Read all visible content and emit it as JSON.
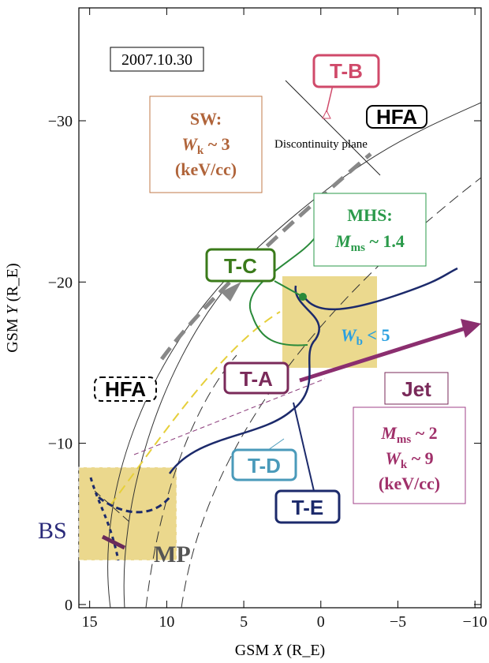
{
  "axes": {
    "x_label": [
      "GSM",
      "X",
      "(R_E)"
    ],
    "y_label": [
      "GSM",
      "Y",
      "(R_E)"
    ],
    "xlim": [
      15.7,
      -10.4
    ],
    "ylim": [
      0.2,
      -37
    ],
    "xticks": [
      15,
      10,
      5,
      0,
      {
        "value": -5,
        "label": "−5"
      },
      {
        "value": -10,
        "label": "−10"
      }
    ],
    "yticks": [
      0,
      {
        "value": -10,
        "label": "−10"
      },
      {
        "value": -20,
        "label": "−20"
      },
      {
        "value": -30,
        "label": "−30"
      }
    ]
  },
  "date": "2007.10.30",
  "labels": {
    "tb": "T-B",
    "hfa_top": "HFA",
    "discontinuity": "Discontinuity plane",
    "sw": {
      "head": "SW:",
      "var": "W",
      "sub": "k",
      "rest": " ~ 3",
      "unit": "(keV/cc)"
    },
    "mhs": {
      "head": "MHS:",
      "var": "M",
      "sub": "ms",
      "rest": " ~ 1.4"
    },
    "tc": "T-C",
    "wb": {
      "var": "W",
      "sub": "b",
      "rest": " < 5"
    },
    "ta": "T-A",
    "jet": "Jet",
    "hfa_left": "HFA",
    "jet_stats": {
      "var1": "M",
      "sub1": "ms",
      "rest1": " ~ 2",
      "var2": "W",
      "sub2": "k",
      "rest2": " ~ 9",
      "unit": "(keV/cc)"
    },
    "td": "T-D",
    "te": "T-E",
    "bs": "BS",
    "mp": "MP"
  }
}
